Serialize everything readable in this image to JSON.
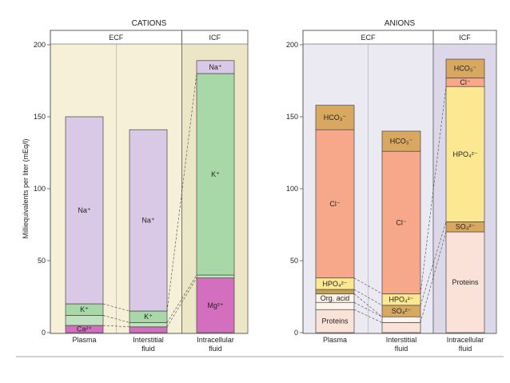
{
  "chart_data": [
    {
      "type": "bar",
      "stacked": true,
      "title": "CATIONS",
      "ylabel": "Milliequivalents per liter (mEq/l)",
      "ylim": [
        0,
        200
      ],
      "yticks": [
        "0",
        "50",
        "100",
        "150",
        "200"
      ],
      "ytick_values": [
        0,
        50,
        100,
        150,
        200
      ],
      "compartments": [
        {
          "label": "ECF",
          "span": [
            0,
            1
          ],
          "color": "#f6f0d8"
        },
        {
          "label": "ICF",
          "span": [
            2,
            2
          ],
          "color": "#ece6c6"
        }
      ],
      "categories": [
        {
          "label": "Plasma",
          "label2": ""
        },
        {
          "label": "Interstitial",
          "label2": "fluid"
        },
        {
          "label": "Intracellular",
          "label2": "fluid"
        }
      ],
      "bars": [
        [
          {
            "label": "Ca²⁺",
            "value": 5,
            "color": "#d46fbf"
          },
          {
            "label": "",
            "value": 7,
            "color": "#bfe3bf"
          },
          {
            "label": "K⁺",
            "value": 8,
            "color": "#a8d8a8"
          },
          {
            "label": "Na⁺",
            "value": 130,
            "color": "#d9c8e6"
          }
        ],
        [
          {
            "label": "",
            "value": 4,
            "color": "#d46fbf"
          },
          {
            "label": "",
            "value": 3,
            "color": "#bfe3bf"
          },
          {
            "label": "K⁺",
            "value": 8,
            "color": "#a8d8a8"
          },
          {
            "label": "Na⁺",
            "value": 126,
            "color": "#d9c8e6"
          }
        ],
        [
          {
            "label": "Mg²⁺",
            "value": 38,
            "color": "#d46fbf"
          },
          {
            "label": "",
            "value": 2,
            "color": "#bfe3bf"
          },
          {
            "label": "K⁺",
            "value": 140,
            "color": "#a8d8a8"
          },
          {
            "label": "Na⁺",
            "value": 9,
            "color": "#d9c8e6"
          }
        ]
      ]
    },
    {
      "type": "bar",
      "stacked": true,
      "title": "ANIONS",
      "ylim": [
        0,
        200
      ],
      "yticks": [
        "0",
        "50",
        "100",
        "150",
        "200"
      ],
      "ytick_values": [
        0,
        50,
        100,
        150,
        200
      ],
      "compartments": [
        {
          "label": "ECF",
          "span": [
            0,
            1
          ],
          "color": "#ebe9f2"
        },
        {
          "label": "ICF",
          "span": [
            2,
            2
          ],
          "color": "#dcd8ea"
        }
      ],
      "categories": [
        {
          "label": "Plasma",
          "label2": ""
        },
        {
          "label": "Interstitial",
          "label2": "fluid"
        },
        {
          "label": "Intracellular",
          "label2": "fluid"
        }
      ],
      "bars": [
        [
          {
            "label": "Proteins",
            "value": 16,
            "color": "#fbe2d8"
          },
          {
            "label": "",
            "value": 5,
            "color": "#fdf5ec"
          },
          {
            "label": "Org. acid",
            "value": 6,
            "color": "#fdf5ec"
          },
          {
            "label": "",
            "value": 3,
            "color": "#c8a050"
          },
          {
            "label": "HPO₄²⁻",
            "value": 8,
            "color": "#fbe890"
          },
          {
            "label": "Cl⁻",
            "value": 103,
            "color": "#f8a88a"
          },
          {
            "label": "HCO₃⁻",
            "value": 17,
            "color": "#d9a860"
          }
        ],
        [
          {
            "label": "",
            "value": 7,
            "color": "#fbe2d8"
          },
          {
            "label": "",
            "value": 4,
            "color": "#fdf5ec"
          },
          {
            "label": "SO₄²⁻",
            "value": 8,
            "color": "#d9a860"
          },
          {
            "label": "HPO₄²⁻",
            "value": 8,
            "color": "#fbe890"
          },
          {
            "label": "Cl⁻",
            "value": 99,
            "color": "#f8a88a"
          },
          {
            "label": "HCO₃⁻",
            "value": 14,
            "color": "#d9a860"
          }
        ],
        [
          {
            "label": "Proteins",
            "value": 70,
            "color": "#fbe2d8"
          },
          {
            "label": "SO₄²⁻",
            "value": 7,
            "color": "#d9a860"
          },
          {
            "label": "HPO₄²⁻",
            "value": 94,
            "color": "#fbe890"
          },
          {
            "label": "Cl⁻",
            "value": 6,
            "color": "#f8a88a"
          },
          {
            "label": "HCO₃⁻",
            "value": 13,
            "color": "#d9a860"
          }
        ]
      ]
    }
  ]
}
